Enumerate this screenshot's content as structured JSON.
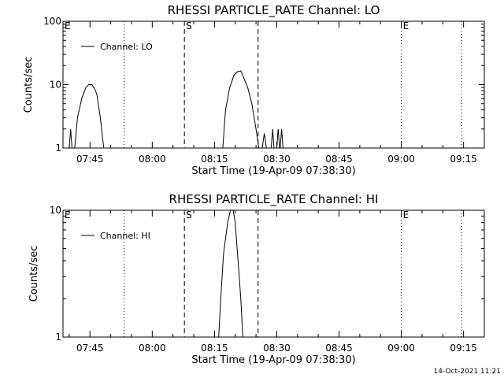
{
  "footer_timestamp": "14-Oct-2021 11:21",
  "chart_data": [
    {
      "type": "line",
      "title": "RHESSI PARTICLE_RATE Channel: LO",
      "xlabel": "Start Time (19-Apr-09 07:38:30)",
      "ylabel": "Counts/sec",
      "yscale": "log",
      "ylim": [
        1,
        100
      ],
      "yticks": [
        1,
        10,
        100
      ],
      "yticklabels": [
        "1",
        "10",
        "100"
      ],
      "xlim": [
        "07:38:30",
        "09:20:00"
      ],
      "xticks": [
        "07:45",
        "08:00",
        "08:15",
        "08:30",
        "08:45",
        "09:00",
        "09:15"
      ],
      "legend": "top-left",
      "series": [
        {
          "name": "Channel: LO",
          "segments": [
            [
              [
                "07:40:00",
                1
              ],
              [
                "07:40:20",
                2
              ],
              [
                "07:40:40",
                1
              ]
            ],
            [
              [
                "07:41:20",
                1
              ],
              [
                "07:42:00",
                3
              ],
              [
                "07:43:00",
                6
              ],
              [
                "07:44:00",
                9
              ],
              [
                "07:44:40",
                10
              ],
              [
                "07:45:30",
                10
              ],
              [
                "07:46:10",
                8.5
              ],
              [
                "07:46:40",
                7
              ],
              [
                "07:47:30",
                3
              ],
              [
                "07:48:00",
                1.5
              ],
              [
                "07:48:20",
                1
              ]
            ],
            [
              [
                "08:17:00",
                1
              ],
              [
                "08:17:40",
                4
              ],
              [
                "08:18:40",
                9
              ],
              [
                "08:19:40",
                14
              ],
              [
                "08:20:30",
                16
              ],
              [
                "08:21:20",
                16.5
              ],
              [
                "08:22:00",
                13
              ],
              [
                "08:23:00",
                9
              ],
              [
                "08:24:00",
                5
              ],
              [
                "08:25:00",
                2
              ],
              [
                "08:25:40",
                1
              ]
            ],
            [
              [
                "08:26:30",
                1
              ],
              [
                "08:27:00",
                1.7
              ],
              [
                "08:27:30",
                1
              ]
            ],
            [
              [
                "08:28:40",
                1
              ],
              [
                "08:29:00",
                2
              ],
              [
                "08:29:20",
                1
              ]
            ],
            [
              [
                "08:30:00",
                1
              ],
              [
                "08:30:20",
                2
              ],
              [
                "08:30:40",
                1
              ]
            ],
            [
              [
                "08:30:50",
                1
              ],
              [
                "08:31:10",
                2
              ],
              [
                "08:31:30",
                1
              ]
            ]
          ]
        }
      ],
      "markers": [
        {
          "label": "E",
          "time": "07:38:30",
          "style": "dotted"
        },
        {
          "label": "",
          "time": "07:53:15",
          "style": "dotted"
        },
        {
          "label": "S",
          "time": "08:07:45",
          "style": "dashed"
        },
        {
          "label": "",
          "time": "08:25:30",
          "style": "dashed"
        },
        {
          "label": "E",
          "time": "09:00:00",
          "style": "dotted"
        },
        {
          "label": "",
          "time": "09:14:30",
          "style": "dotted"
        }
      ]
    },
    {
      "type": "line",
      "title": "RHESSI PARTICLE_RATE Channel: HI",
      "xlabel": "Start Time (19-Apr-09 07:38:30)",
      "ylabel": "Counts/sec",
      "yscale": "log",
      "ylim": [
        1,
        10
      ],
      "yticks": [
        1,
        10
      ],
      "yticklabels": [
        "1",
        "10"
      ],
      "xlim": [
        "07:38:30",
        "09:20:00"
      ],
      "xticks": [
        "07:45",
        "08:00",
        "08:15",
        "08:30",
        "08:45",
        "09:00",
        "09:15"
      ],
      "legend": "top-left",
      "series": [
        {
          "name": "Channel: HI",
          "segments": [
            [
              [
                "08:16:00",
                1
              ],
              [
                "08:16:30",
                2
              ],
              [
                "08:17:10",
                4.5
              ],
              [
                "08:18:10",
                8
              ],
              [
                "08:18:50",
                10
              ],
              [
                "08:19:30",
                10
              ],
              [
                "08:20:00",
                8
              ],
              [
                "08:20:40",
                4
              ],
              [
                "08:21:20",
                2
              ],
              [
                "08:21:50",
                1
              ]
            ]
          ]
        }
      ],
      "markers": [
        {
          "label": "E",
          "time": "07:38:30",
          "style": "dotted"
        },
        {
          "label": "",
          "time": "07:53:15",
          "style": "dotted"
        },
        {
          "label": "S",
          "time": "08:07:45",
          "style": "dashed"
        },
        {
          "label": "",
          "time": "08:25:30",
          "style": "dashed"
        },
        {
          "label": "E",
          "time": "09:00:00",
          "style": "dotted"
        },
        {
          "label": "",
          "time": "09:14:30",
          "style": "dotted"
        }
      ]
    }
  ]
}
